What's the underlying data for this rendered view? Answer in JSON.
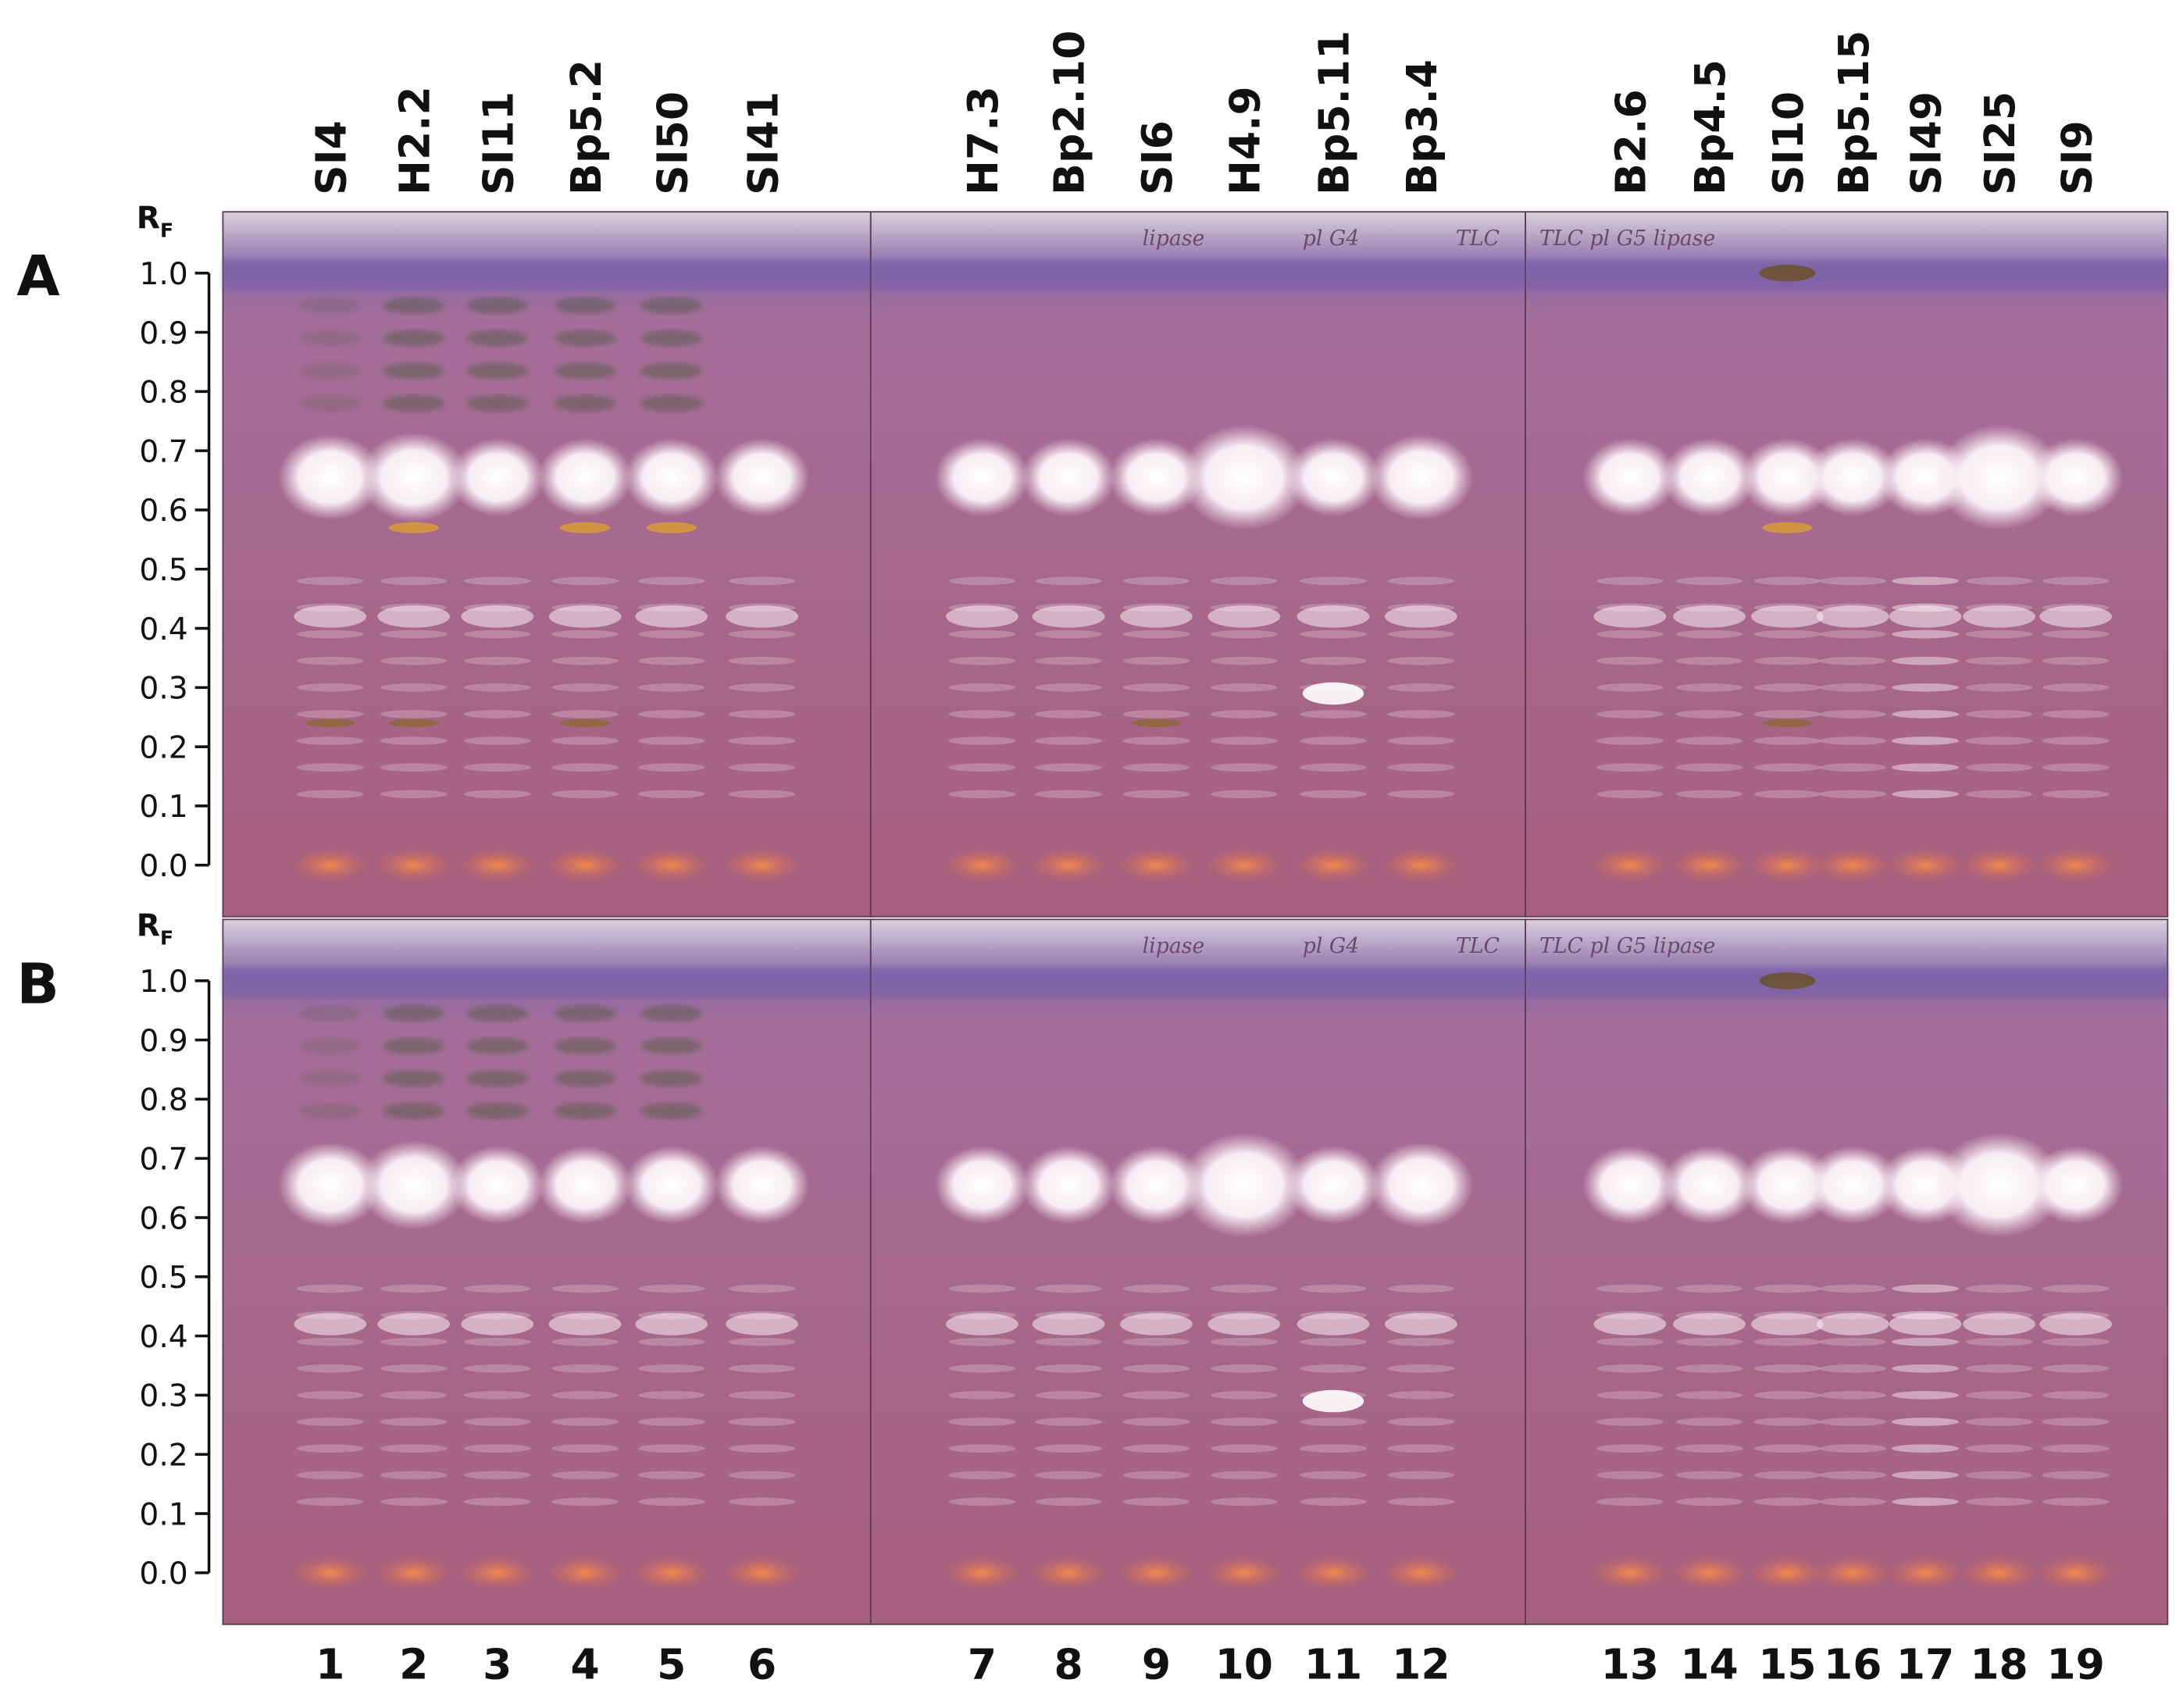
{
  "lanes": [
    {
      "name": "SI4",
      "number": "1"
    },
    {
      "name": "H2.2",
      "number": "2"
    },
    {
      "name": "SI11",
      "number": "3"
    },
    {
      "name": "Bp5.2",
      "number": "4"
    },
    {
      "name": "SI50",
      "number": "5"
    },
    {
      "name": "SI41",
      "number": "6"
    },
    {
      "name": "H7.3",
      "number": "7"
    },
    {
      "name": "Bp2.10",
      "number": "8"
    },
    {
      "name": "SI6",
      "number": "9"
    },
    {
      "name": "H4.9",
      "number": "10"
    },
    {
      "name": "Bp5.11",
      "number": "11"
    },
    {
      "name": "Bp3.4",
      "number": "12"
    },
    {
      "name": "B2.6",
      "number": "13"
    },
    {
      "name": "Bp4.5",
      "number": "14"
    },
    {
      "name": "SI10",
      "number": "15"
    },
    {
      "name": "Bp5.15",
      "number": "16"
    },
    {
      "name": "SI49",
      "number": "17"
    },
    {
      "name": "SI25",
      "number": "18"
    },
    {
      "name": "SI9",
      "number": "19"
    }
  ],
  "rf_label": {
    "main": "R",
    "sub": "F"
  },
  "panels": [
    {
      "letter": "A",
      "ticks": [
        "1.0",
        "0.9",
        "0.8",
        "0.7",
        "0.6",
        "0.5",
        "0.4",
        "0.3",
        "0.2",
        "0.1",
        "0.0"
      ],
      "plate_notes": [
        "lipase",
        "pl G4",
        "TLC",
        "TLC pl G5 lipase"
      ]
    },
    {
      "letter": "B",
      "ticks": [
        "1.0",
        "0.9",
        "0.8",
        "0.7",
        "0.6",
        "0.5",
        "0.4",
        "0.3",
        "0.2",
        "0.1",
        "0.0"
      ],
      "plate_notes": [
        "lipase",
        "pl G4",
        "TLC",
        "TLC pl G5 lipase"
      ]
    }
  ]
}
